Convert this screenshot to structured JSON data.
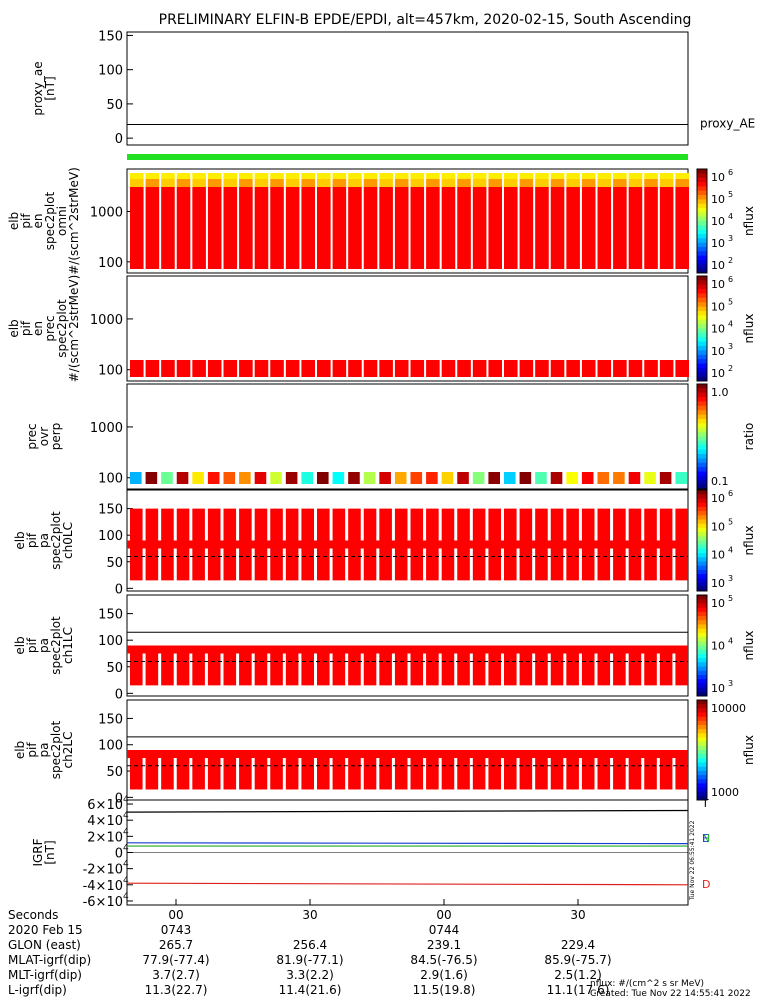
{
  "title": "PRELIMINARY ELFIN-B EPDE/EPDI, alt=457km, 2020-02-15, South Ascending",
  "colors": {
    "green_bar": "#22e022",
    "trace_black": "#000000",
    "trace_N": "#22aa22",
    "trace_E": "#1a3fd0",
    "trace_D": "#e02020",
    "spectrum_fill": "#ff0000"
  },
  "chart_data": [
    {
      "type": "line",
      "panel": "proxy_ae",
      "ylabel": [
        "proxy_ae",
        "[nT]"
      ],
      "ylim": [
        -10,
        155
      ],
      "yticks": [
        0,
        50,
        100,
        150
      ],
      "series": [
        {
          "name": "proxy_AE",
          "values": [
            20,
            20
          ]
        }
      ]
    },
    {
      "type": "heatmap",
      "panel": "omni",
      "ylabel": [
        "elb",
        "pif",
        "en",
        "spec2plot",
        "omni",
        "#/(scm^2strMeV)"
      ],
      "yscale": "log",
      "ylim": [
        60,
        7000
      ],
      "yticks": [
        "100",
        "1000"
      ],
      "colorbar": {
        "label": "nflux",
        "ticks": [
          "10",
          "10",
          "10",
          "10",
          "10"
        ],
        "exps": [
          "6",
          "5",
          "4",
          "3",
          "2"
        ],
        "scale": "log"
      }
    },
    {
      "type": "heatmap",
      "panel": "prec",
      "ylabel": [
        "elb",
        "pif",
        "en",
        "prec",
        "spec2plot",
        "#/(scm^2strMeV)"
      ],
      "yscale": "log",
      "ylim": [
        60,
        7000
      ],
      "yticks": [
        "100",
        "1000"
      ],
      "colorbar": {
        "label": "nflux",
        "ticks": [
          "10",
          "10",
          "10",
          "10",
          "10"
        ],
        "exps": [
          "6",
          "5",
          "4",
          "3",
          "2"
        ],
        "scale": "log"
      }
    },
    {
      "type": "heatmap",
      "panel": "ratio",
      "ylabel": [
        "prec",
        "ovr",
        "perp"
      ],
      "yscale": "log",
      "ylim": [
        60,
        7000
      ],
      "yticks": [
        "100",
        "1000"
      ],
      "colorbar": {
        "label": "ratio",
        "ticks": [
          "1.0",
          "0.1"
        ],
        "scale": "log"
      }
    },
    {
      "type": "heatmap",
      "panel": "ch0LC",
      "ylabel": [
        "elb",
        "pif",
        "pa",
        "spec2plot",
        "ch0LC"
      ],
      "ylim": [
        -5,
        185
      ],
      "yticks": [
        0,
        50,
        100,
        150
      ],
      "colorbar": {
        "label": "nflux",
        "ticks": [
          "10",
          "10",
          "10",
          "10"
        ],
        "exps": [
          "6",
          "5",
          "4",
          "3"
        ],
        "scale": "log"
      }
    },
    {
      "type": "heatmap",
      "panel": "ch1LC",
      "ylabel": [
        "elb",
        "pif",
        "pa",
        "spec2plot",
        "ch1LC"
      ],
      "ylim": [
        -5,
        185
      ],
      "yticks": [
        0,
        50,
        100,
        150
      ],
      "colorbar": {
        "label": "nflux",
        "ticks": [
          "10",
          "10",
          "10"
        ],
        "exps": [
          "5",
          "4",
          "3"
        ],
        "scale": "log"
      }
    },
    {
      "type": "heatmap",
      "panel": "ch2LC",
      "ylabel": [
        "elb",
        "pif",
        "pa",
        "spec2plot",
        "ch2LC"
      ],
      "ylim": [
        -5,
        185
      ],
      "yticks": [
        0,
        50,
        100,
        150
      ],
      "colorbar": {
        "label": "nflux",
        "ticks": [
          "10000",
          "1000"
        ],
        "scale": "log"
      }
    },
    {
      "type": "line",
      "panel": "IGRF",
      "ylabel": [
        "IGRF",
        "[nT]"
      ],
      "ylim": [
        -65000,
        65000
      ],
      "yticks": [
        "-6×10",
        "-4×10",
        "-2×10",
        "0",
        "2×10",
        "4×10",
        "6×10"
      ],
      "ytick_exp": "4",
      "series": [
        {
          "name": "T",
          "values": [
            50000,
            52000
          ]
        },
        {
          "name": "N",
          "values": [
            8000,
            8000
          ]
        },
        {
          "name": "E",
          "values": [
            12000,
            11000
          ]
        },
        {
          "name": "D",
          "values": [
            -38000,
            -40000
          ]
        }
      ],
      "legend": [
        "T",
        "N",
        "E",
        "D"
      ]
    }
  ],
  "time_axis": {
    "major_labels": [
      "00",
      "30",
      "00",
      "30"
    ],
    "rows": [
      {
        "label": "Seconds",
        "values": [
          "00",
          "30",
          "00",
          "30"
        ]
      },
      {
        "label": "2020 Feb 15",
        "values": [
          "0743",
          "",
          "0744",
          ""
        ]
      },
      {
        "label": "GLON (east)",
        "values": [
          "265.7",
          "256.4",
          "239.1",
          "229.4"
        ]
      },
      {
        "label": "MLAT-igrf(dip)",
        "values": [
          "77.9(-77.4)",
          "81.9(-77.1)",
          "84.5(-76.5)",
          "85.9(-75.7)"
        ]
      },
      {
        "label": "MLT-igrf(dip)",
        "values": [
          "3.7(2.7)",
          "3.3(2.2)",
          "2.9(1.6)",
          "2.5(1.2)"
        ]
      },
      {
        "label": "L-igrf(dip)",
        "values": [
          "11.3(22.7)",
          "11.4(21.6)",
          "11.5(19.8)",
          "11.1(17.6)"
        ]
      }
    ]
  },
  "footer": {
    "units": "nflux: #/(cm^2 s sr MeV)",
    "created": "Created: Tue Nov 22 14:55:41 2022",
    "vertical_stamp": "Tue Nov 22 06:55:41 2022"
  }
}
